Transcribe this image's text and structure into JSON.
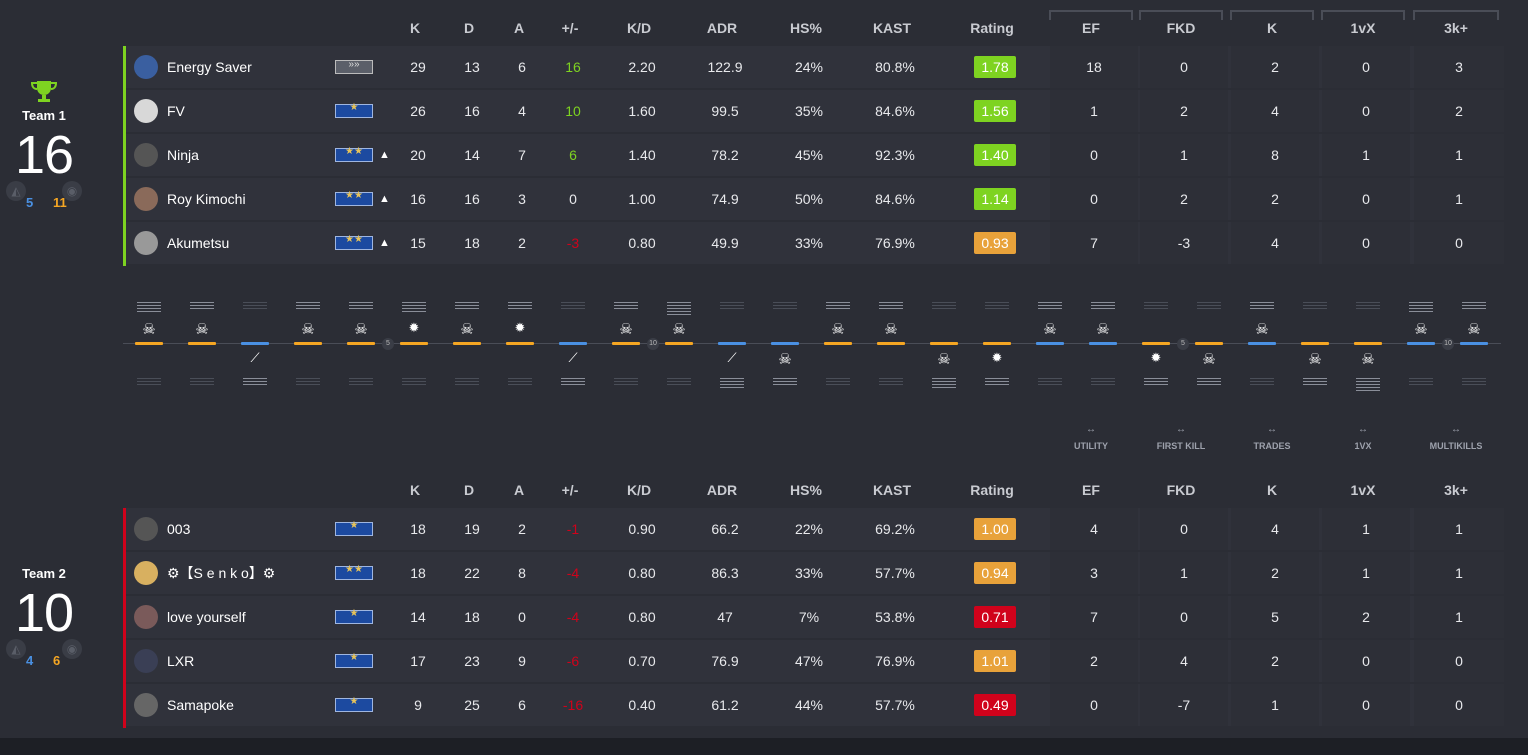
{
  "columns": {
    "stats": [
      "K",
      "D",
      "A",
      "+/-",
      "K/D",
      "ADR",
      "HS%",
      "KAST",
      "Rating"
    ],
    "extra": [
      "EF",
      "FKD",
      "K",
      "1vX",
      "3k+"
    ]
  },
  "legend": [
    "UTILITY",
    "FIRST KILL",
    "TRADES",
    "1VX",
    "MULTIKILLS"
  ],
  "team1": {
    "name": "Team 1",
    "score": "16",
    "half_ct": "5",
    "half_t": "11",
    "players": [
      {
        "name": "Energy Saver",
        "rank": "silver",
        "up": false,
        "k": "29",
        "d": "13",
        "a": "6",
        "pm": "16",
        "pm_sign": "pos",
        "kd": "2.20",
        "adr": "122.9",
        "hs": "24%",
        "kast": "80.8%",
        "rating": "1.78",
        "rc": "rg",
        "ef": "18",
        "fkd": "0",
        "tk": "2",
        "vx": "0",
        "mk": "3",
        "avatar": "#3a5fa0"
      },
      {
        "name": "FV",
        "rank": "gold",
        "up": false,
        "k": "26",
        "d": "16",
        "a": "4",
        "pm": "10",
        "pm_sign": "pos",
        "kd": "1.60",
        "adr": "99.5",
        "hs": "35%",
        "kast": "84.6%",
        "rating": "1.56",
        "rc": "rg",
        "ef": "1",
        "fkd": "2",
        "tk": "4",
        "vx": "0",
        "mk": "2",
        "avatar": "#d8d8d8"
      },
      {
        "name": "Ninja",
        "rank": "gold2",
        "up": true,
        "k": "20",
        "d": "14",
        "a": "7",
        "pm": "6",
        "pm_sign": "pos",
        "kd": "1.40",
        "adr": "78.2",
        "hs": "45%",
        "kast": "92.3%",
        "rating": "1.40",
        "rc": "rg",
        "ef": "0",
        "fkd": "1",
        "tk": "8",
        "vx": "1",
        "mk": "1",
        "avatar": "#555"
      },
      {
        "name": "Roy Kimochi",
        "rank": "gold2",
        "up": true,
        "k": "16",
        "d": "16",
        "a": "3",
        "pm": "0",
        "pm_sign": "zero",
        "kd": "1.00",
        "adr": "74.9",
        "hs": "50%",
        "kast": "84.6%",
        "rating": "1.14",
        "rc": "rg",
        "ef": "0",
        "fkd": "2",
        "tk": "2",
        "vx": "0",
        "mk": "1",
        "avatar": "#8a6a5a"
      },
      {
        "name": "Akumetsu",
        "rank": "gold2",
        "up": true,
        "k": "15",
        "d": "18",
        "a": "2",
        "pm": "-3",
        "pm_sign": "neg",
        "kd": "0.80",
        "adr": "49.9",
        "hs": "33%",
        "kast": "76.9%",
        "rating": "0.93",
        "rc": "ro",
        "ef": "7",
        "fkd": "-3",
        "tk": "4",
        "vx": "0",
        "mk": "0",
        "avatar": "#999"
      }
    ]
  },
  "team2": {
    "name": "Team 2",
    "score": "10",
    "half_ct": "4",
    "half_t": "6",
    "players": [
      {
        "name": "003",
        "rank": "gold",
        "up": false,
        "k": "18",
        "d": "19",
        "a": "2",
        "pm": "-1",
        "pm_sign": "neg",
        "kd": "0.90",
        "adr": "66.2",
        "hs": "22%",
        "kast": "69.2%",
        "rating": "1.00",
        "rc": "ro",
        "ef": "4",
        "fkd": "0",
        "tk": "4",
        "vx": "1",
        "mk": "1",
        "avatar": "#555"
      },
      {
        "name": "⚙【S e n k o】⚙",
        "rank": "gold2",
        "up": false,
        "k": "18",
        "d": "22",
        "a": "8",
        "pm": "-4",
        "pm_sign": "neg",
        "kd": "0.80",
        "adr": "86.3",
        "hs": "33%",
        "kast": "57.7%",
        "rating": "0.94",
        "rc": "ro",
        "ef": "3",
        "fkd": "1",
        "tk": "2",
        "vx": "1",
        "mk": "1",
        "avatar": "#d8b060"
      },
      {
        "name": "love yourself",
        "rank": "gold",
        "up": false,
        "k": "14",
        "d": "18",
        "a": "0",
        "pm": "-4",
        "pm_sign": "neg",
        "kd": "0.80",
        "adr": "47",
        "hs": "7%",
        "kast": "53.8%",
        "rating": "0.71",
        "rc": "rr",
        "ef": "7",
        "fkd": "0",
        "tk": "5",
        "vx": "2",
        "mk": "1",
        "avatar": "#7a5a5a"
      },
      {
        "name": "LXR",
        "rank": "gold",
        "up": false,
        "k": "17",
        "d": "23",
        "a": "9",
        "pm": "-6",
        "pm_sign": "neg",
        "kd": "0.70",
        "adr": "76.9",
        "hs": "47%",
        "kast": "76.9%",
        "rating": "1.01",
        "rc": "ro",
        "ef": "2",
        "fkd": "4",
        "tk": "2",
        "vx": "0",
        "mk": "0",
        "avatar": "#3a3f55"
      },
      {
        "name": "Samapoke",
        "rank": "gold",
        "up": false,
        "k": "9",
        "d": "25",
        "a": "6",
        "pm": "-16",
        "pm_sign": "neg",
        "kd": "0.40",
        "adr": "61.2",
        "hs": "44%",
        "kast": "57.7%",
        "rating": "0.49",
        "rc": "rr",
        "ef": "0",
        "fkd": "-7",
        "tk": "1",
        "vx": "0",
        "mk": "0",
        "avatar": "#666"
      }
    ]
  },
  "rounds": [
    {
      "win": "t1",
      "side": "t",
      "icon": "skull",
      "top": 4,
      "bot": 0
    },
    {
      "win": "t1",
      "side": "t",
      "icon": "skull",
      "top": 3,
      "bot": 0
    },
    {
      "win": "t2",
      "side": "ct",
      "icon": "defuse",
      "top": 0,
      "bot": 3
    },
    {
      "win": "t1",
      "side": "t",
      "icon": "skull",
      "top": 3,
      "bot": 0
    },
    {
      "win": "t1",
      "side": "t",
      "icon": "skull",
      "top": 3,
      "bot": 0
    },
    {
      "win": "t1",
      "side": "t",
      "icon": "bomb",
      "top": 4,
      "bot": 2
    },
    {
      "win": "t1",
      "side": "t",
      "icon": "skull",
      "top": 3,
      "bot": 0
    },
    {
      "win": "t1",
      "side": "t",
      "icon": "bomb",
      "top": 3,
      "bot": 1
    },
    {
      "win": "t2",
      "side": "ct",
      "icon": "defuse",
      "top": 1,
      "bot": 2
    },
    {
      "win": "t1",
      "side": "t",
      "icon": "skull",
      "top": 3,
      "bot": 0
    },
    {
      "win": "t1",
      "side": "t",
      "icon": "skull",
      "top": 5,
      "bot": 0
    },
    {
      "win": "t2",
      "side": "ct",
      "icon": "defuse",
      "top": 0,
      "bot": 4
    },
    {
      "win": "t2",
      "side": "ct",
      "icon": "skull",
      "top": 0,
      "bot": 1
    },
    {
      "win": "t1",
      "side": "t",
      "icon": "skull",
      "top": 3,
      "bot": 0
    },
    {
      "win": "t1",
      "side": "t",
      "icon": "skull",
      "top": 2,
      "bot": 0
    },
    {
      "win": "t2",
      "side": "t",
      "icon": "skull",
      "top": 0,
      "bot": 4
    },
    {
      "win": "t2",
      "side": "t",
      "icon": "bomb",
      "top": 0,
      "bot": 2
    },
    {
      "win": "t1",
      "side": "ct",
      "icon": "skull",
      "top": 3,
      "bot": 0
    },
    {
      "win": "t1",
      "side": "ct",
      "icon": "skull",
      "top": 3,
      "bot": 0
    },
    {
      "win": "t2",
      "side": "t",
      "icon": "bomb",
      "top": 1,
      "bot": 0
    },
    {
      "win": "t2",
      "side": "t",
      "icon": "skull",
      "top": 0,
      "bot": 2
    },
    {
      "win": "t1",
      "side": "ct",
      "icon": "skull",
      "top": 3,
      "bot": 0
    },
    {
      "win": "t2",
      "side": "t",
      "icon": "skull",
      "top": 0,
      "bot": 1
    },
    {
      "win": "t2",
      "side": "t",
      "icon": "skull",
      "top": 0,
      "bot": 5
    },
    {
      "win": "t1",
      "side": "ct",
      "icon": "skull",
      "top": 4,
      "bot": 0
    },
    {
      "win": "t1",
      "side": "ct",
      "icon": "skull",
      "top": 3,
      "bot": 0
    }
  ],
  "milestones": [
    "5",
    "10",
    "5",
    "10"
  ]
}
